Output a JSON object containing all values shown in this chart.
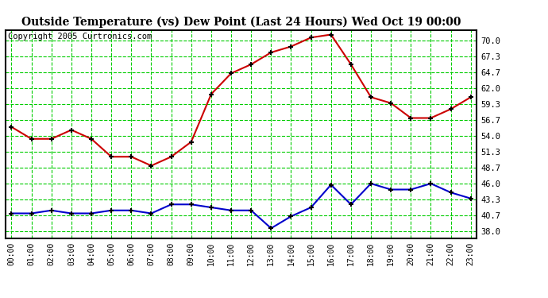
{
  "title": "Outside Temperature (vs) Dew Point (Last 24 Hours) Wed Oct 19 00:00",
  "copyright": "Copyright 2005 Curtronics.com",
  "background_color": "#ffffff",
  "plot_bg_color": "#ffffff",
  "grid_color": "#00cc00",
  "temp": [
    55.5,
    53.5,
    53.5,
    55.0,
    53.5,
    50.5,
    50.5,
    49.0,
    50.5,
    53.0,
    61.0,
    64.5,
    66.0,
    68.0,
    69.0,
    70.5,
    71.0,
    66.0,
    60.5,
    59.5,
    57.0,
    57.0,
    58.5,
    60.5
  ],
  "dew": [
    41.0,
    41.0,
    41.5,
    41.0,
    41.0,
    41.5,
    41.5,
    41.0,
    42.5,
    42.5,
    42.0,
    41.5,
    41.5,
    38.5,
    40.5,
    42.0,
    45.8,
    42.5,
    46.0,
    45.0,
    45.0,
    46.0,
    44.5,
    43.5
  ],
  "temp_color": "#cc0000",
  "dew_color": "#0000cc",
  "yticks": [
    38.0,
    40.7,
    43.3,
    46.0,
    48.7,
    51.3,
    54.0,
    56.7,
    59.3,
    62.0,
    64.7,
    67.3,
    70.0
  ],
  "ylim": [
    36.8,
    71.8
  ],
  "xlim": [
    -0.3,
    23.3
  ],
  "title_fontsize": 10,
  "copyright_fontsize": 7.5
}
